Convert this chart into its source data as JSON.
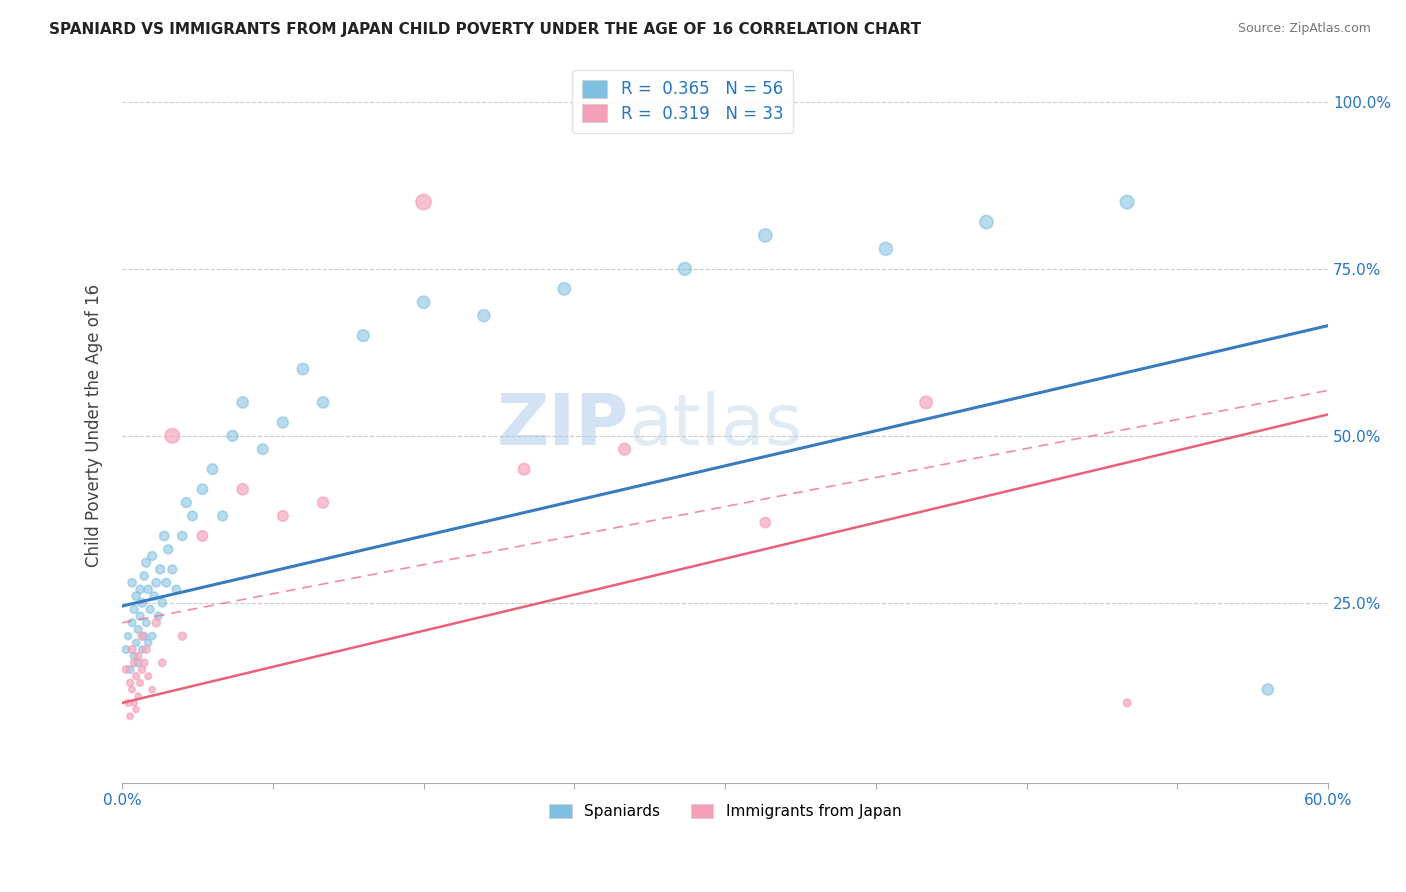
{
  "title": "SPANIARD VS IMMIGRANTS FROM JAPAN CHILD POVERTY UNDER THE AGE OF 16 CORRELATION CHART",
  "source": "Source: ZipAtlas.com",
  "xlabel": "",
  "ylabel": "Child Poverty Under the Age of 16",
  "xlim": [
    0.0,
    0.6
  ],
  "ylim": [
    -0.02,
    1.05
  ],
  "spaniard_R": 0.365,
  "spaniard_N": 56,
  "japan_R": 0.319,
  "japan_N": 33,
  "spaniard_color": "#7fbfdf",
  "japan_color": "#f4a0b8",
  "spaniard_line_color": "#3a7bbf",
  "japan_line_color": "#e8607a",
  "spaniard_line_intercept": 0.245,
  "spaniard_line_slope": 0.7,
  "japan_line_intercept": 0.1,
  "japan_line_slope": 0.72,
  "japan_dashed_intercept": 0.22,
  "japan_dashed_slope": 0.58,
  "spaniard_scatter_x": [
    0.002,
    0.003,
    0.004,
    0.005,
    0.005,
    0.006,
    0.006,
    0.007,
    0.007,
    0.008,
    0.008,
    0.009,
    0.009,
    0.01,
    0.01,
    0.011,
    0.011,
    0.012,
    0.012,
    0.013,
    0.013,
    0.014,
    0.015,
    0.015,
    0.016,
    0.017,
    0.018,
    0.019,
    0.02,
    0.021,
    0.022,
    0.023,
    0.025,
    0.027,
    0.03,
    0.032,
    0.035,
    0.04,
    0.045,
    0.05,
    0.055,
    0.06,
    0.07,
    0.08,
    0.09,
    0.1,
    0.12,
    0.15,
    0.18,
    0.22,
    0.28,
    0.32,
    0.38,
    0.43,
    0.5,
    0.57
  ],
  "spaniard_scatter_y": [
    0.18,
    0.2,
    0.15,
    0.22,
    0.28,
    0.17,
    0.24,
    0.19,
    0.26,
    0.21,
    0.16,
    0.23,
    0.27,
    0.18,
    0.25,
    0.2,
    0.29,
    0.22,
    0.31,
    0.19,
    0.27,
    0.24,
    0.2,
    0.32,
    0.26,
    0.28,
    0.23,
    0.3,
    0.25,
    0.35,
    0.28,
    0.33,
    0.3,
    0.27,
    0.35,
    0.4,
    0.38,
    0.42,
    0.45,
    0.38,
    0.5,
    0.55,
    0.48,
    0.52,
    0.6,
    0.55,
    0.65,
    0.7,
    0.68,
    0.72,
    0.75,
    0.8,
    0.78,
    0.82,
    0.85,
    0.12
  ],
  "spaniard_scatter_size": [
    30,
    25,
    28,
    30,
    35,
    28,
    32,
    25,
    35,
    30,
    28,
    32,
    35,
    25,
    38,
    30,
    35,
    28,
    40,
    25,
    35,
    32,
    28,
    40,
    35,
    38,
    30,
    42,
    35,
    45,
    38,
    42,
    40,
    35,
    45,
    50,
    48,
    55,
    58,
    50,
    60,
    65,
    58,
    62,
    68,
    65,
    72,
    78,
    75,
    80,
    85,
    90,
    88,
    92,
    95,
    65
  ],
  "japan_scatter_x": [
    0.002,
    0.003,
    0.004,
    0.004,
    0.005,
    0.005,
    0.006,
    0.006,
    0.007,
    0.007,
    0.008,
    0.008,
    0.009,
    0.01,
    0.01,
    0.011,
    0.012,
    0.013,
    0.015,
    0.017,
    0.02,
    0.025,
    0.03,
    0.04,
    0.06,
    0.08,
    0.1,
    0.15,
    0.2,
    0.25,
    0.32,
    0.4,
    0.5
  ],
  "japan_scatter_y": [
    0.15,
    0.1,
    0.08,
    0.13,
    0.12,
    0.18,
    0.1,
    0.16,
    0.09,
    0.14,
    0.11,
    0.17,
    0.13,
    0.15,
    0.2,
    0.16,
    0.18,
    0.14,
    0.12,
    0.22,
    0.16,
    0.5,
    0.2,
    0.35,
    0.42,
    0.38,
    0.4,
    0.85,
    0.45,
    0.48,
    0.37,
    0.55,
    0.1
  ],
  "japan_scatter_size": [
    28,
    22,
    20,
    25,
    22,
    30,
    20,
    28,
    18,
    25,
    20,
    28,
    22,
    25,
    32,
    28,
    30,
    22,
    20,
    35,
    28,
    110,
    32,
    55,
    65,
    58,
    62,
    120,
    68,
    72,
    55,
    80,
    30
  ],
  "watermark_zip": "ZIP",
  "watermark_atlas": "atlas",
  "background_color": "#ffffff",
  "grid_color": "#cccccc",
  "ytick_vals": [
    0.25,
    0.5,
    0.75,
    1.0
  ],
  "ytick_labels": [
    "25.0%",
    "50.0%",
    "75.0%",
    "100.0%"
  ]
}
